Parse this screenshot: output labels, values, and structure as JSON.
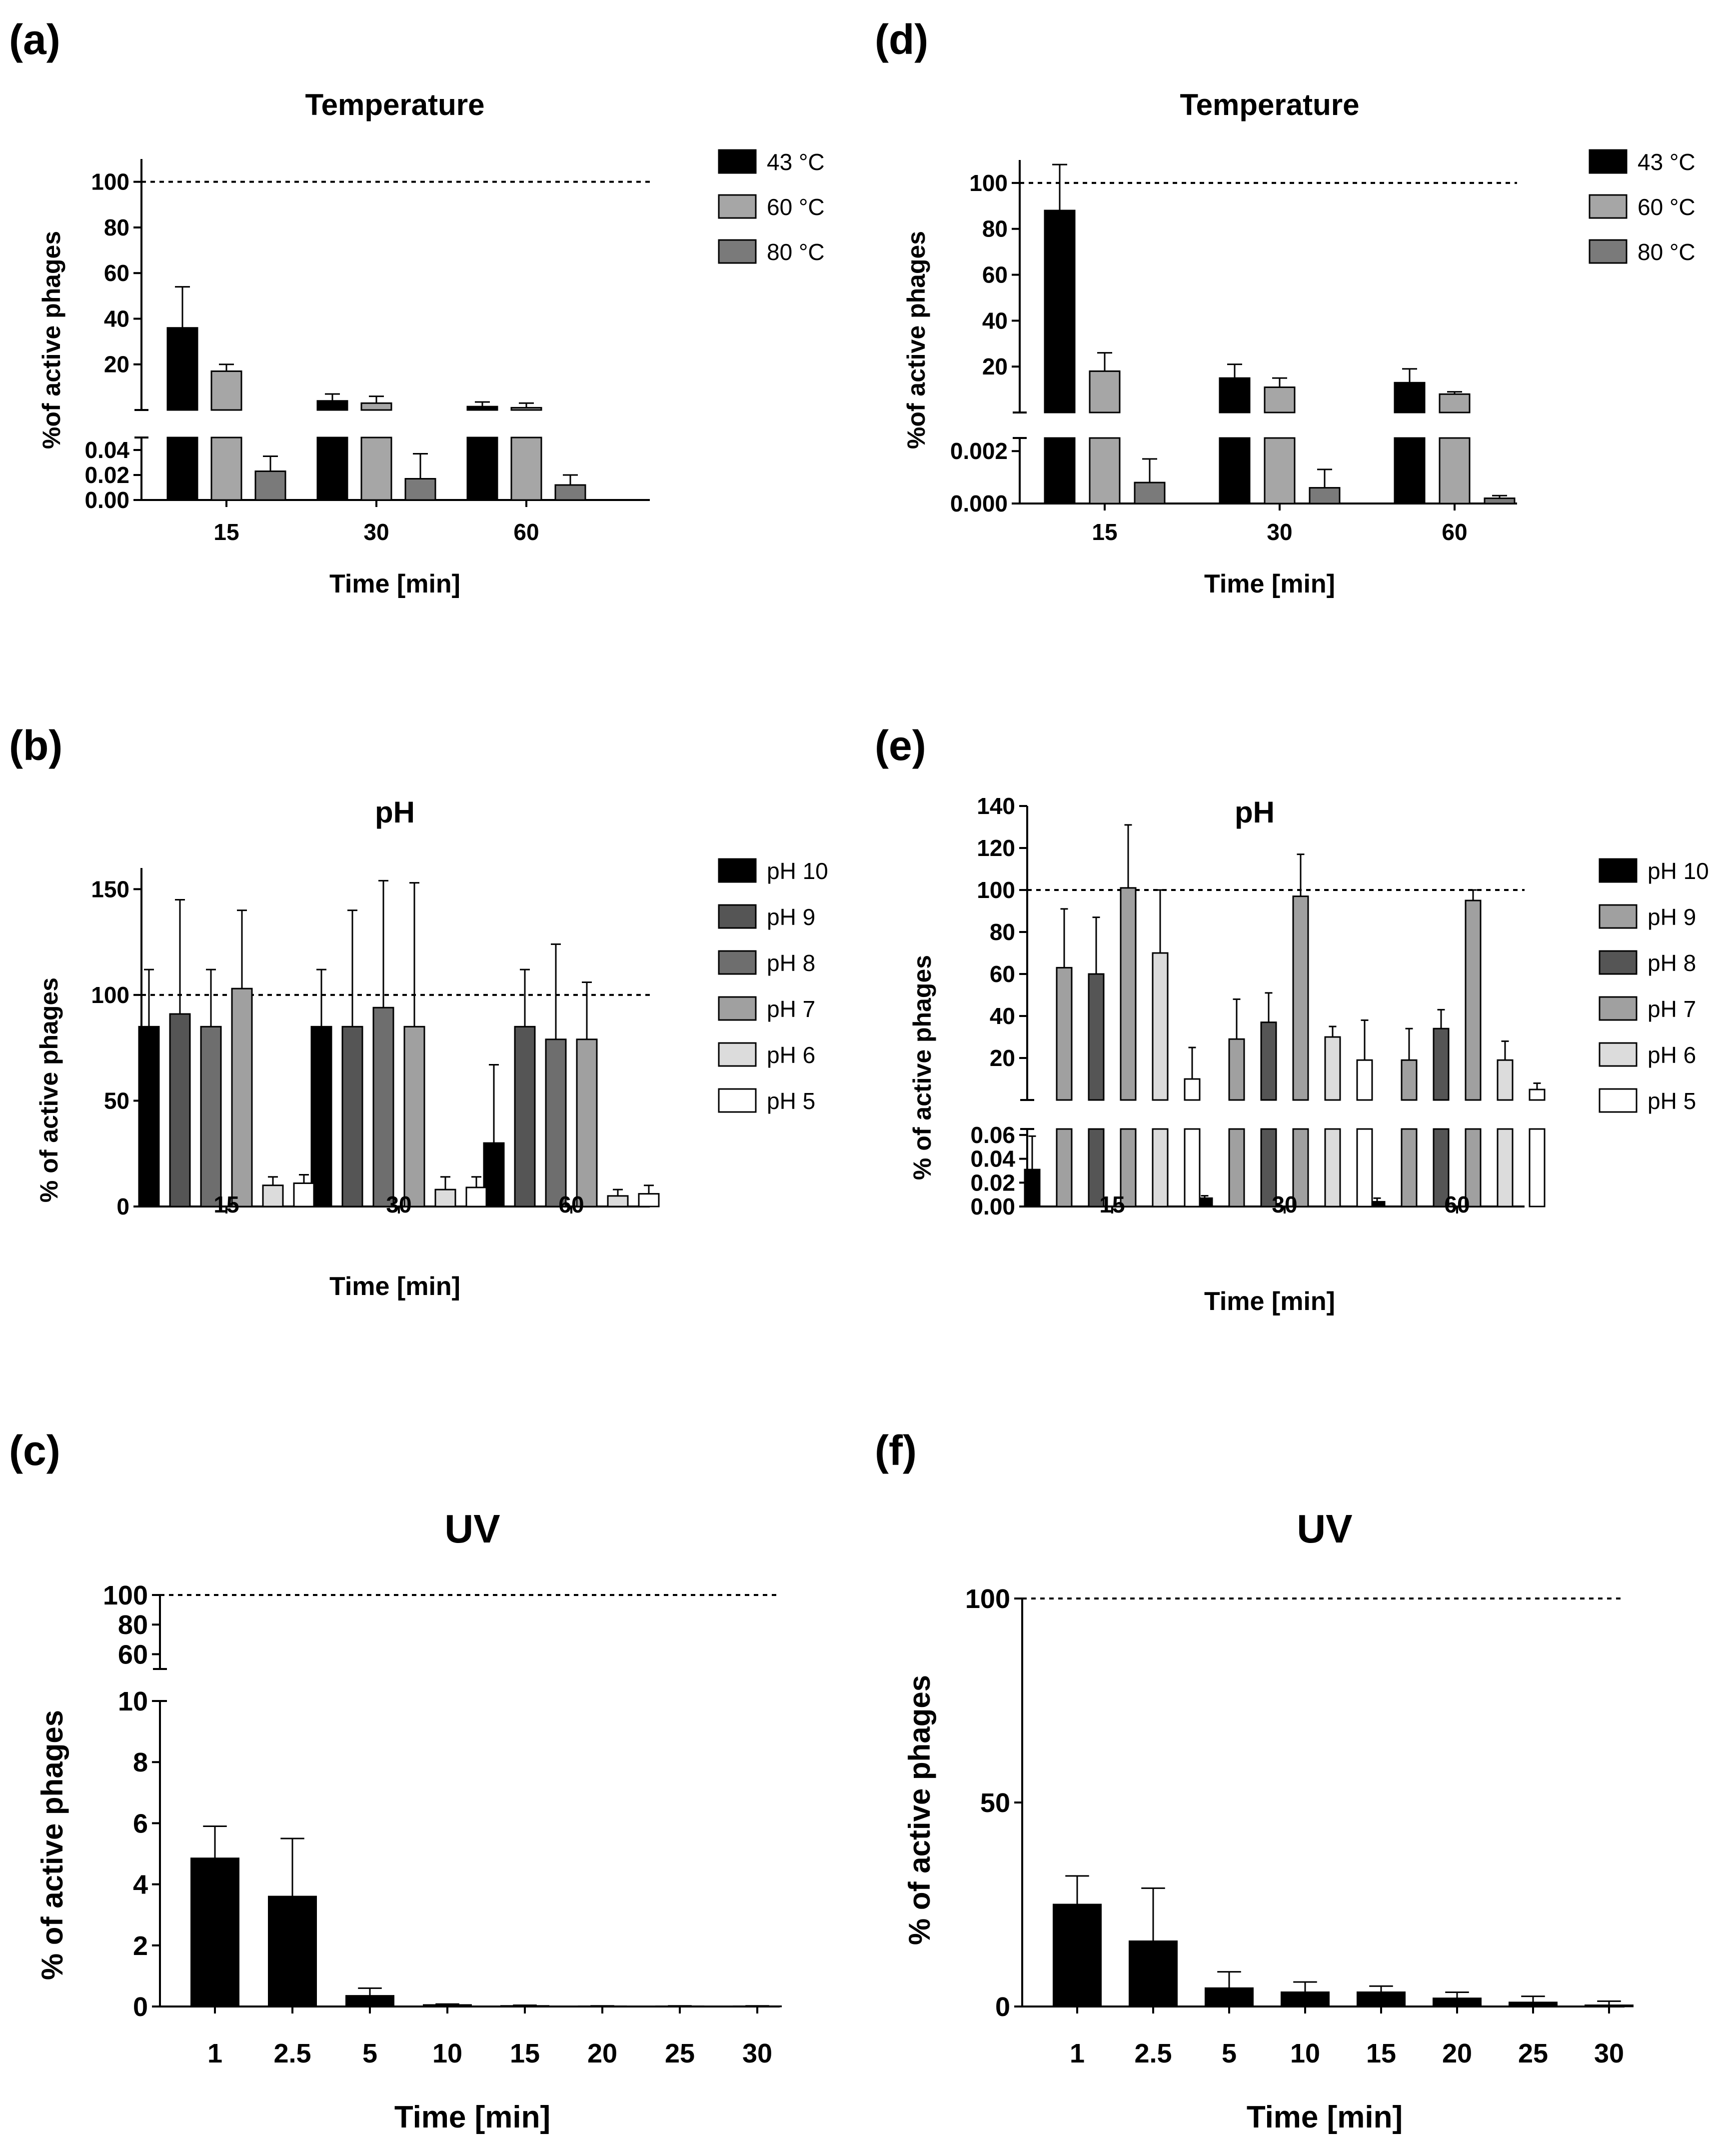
{
  "figure": {
    "panel_labels": [
      "(a)",
      "(b)",
      "(c)",
      "(d)",
      "(e)",
      "(f)"
    ]
  },
  "chart_data": [
    {
      "id": "a",
      "panel_label": "(a)",
      "type": "bar",
      "title": "Temperature",
      "xlabel": "Time [min]",
      "ylabel": "%of active phages",
      "categories": [
        "15",
        "30",
        "60"
      ],
      "reference_line": 100,
      "broken_axis": {
        "lower": {
          "range": [
            0,
            0.05
          ],
          "ticks": [
            0,
            0.02,
            0.04
          ],
          "tick_labels": [
            "0.00",
            "0.02",
            "0.04"
          ]
        },
        "upper": {
          "range": [
            0,
            110
          ],
          "ticks": [
            20,
            40,
            60,
            80,
            100
          ],
          "tick_labels": [
            "20",
            "40",
            "60",
            "80",
            "100"
          ]
        }
      },
      "series": [
        {
          "name": "43 °C",
          "color": "#000000",
          "values": [
            36,
            4,
            1.5
          ],
          "errors": [
            18,
            3,
            2
          ]
        },
        {
          "name": "60 °C",
          "color": "#a6a6a6",
          "values": [
            17,
            3,
            1
          ],
          "errors": [
            3,
            3,
            2
          ]
        },
        {
          "name": "80 °C",
          "color": "#7a7a7a",
          "values": [
            0.023,
            0.017,
            0.012
          ],
          "errors": [
            0.012,
            0.02,
            0.008
          ]
        }
      ]
    },
    {
      "id": "b",
      "panel_label": "(b)",
      "type": "bar",
      "title": "pH",
      "xlabel": "Time [min]",
      "ylabel": "% of active phages",
      "categories": [
        "15",
        "30",
        "60"
      ],
      "reference_line": 100,
      "ylim": [
        0,
        160
      ],
      "yticks": [
        0,
        50,
        100,
        150
      ],
      "series": [
        {
          "name": "pH 10",
          "color": "#000000",
          "values": [
            85,
            85,
            30
          ],
          "errors": [
            27,
            27,
            37
          ]
        },
        {
          "name": "pH 9",
          "color": "#555555",
          "values": [
            91,
            85,
            85
          ],
          "errors": [
            54,
            55,
            27
          ]
        },
        {
          "name": "pH 8",
          "color": "#6e6e6e",
          "values": [
            85,
            94,
            79
          ],
          "errors": [
            27,
            60,
            45
          ]
        },
        {
          "name": "pH 7",
          "color": "#a0a0a0",
          "values": [
            103,
            85,
            79
          ],
          "errors": [
            37,
            68,
            27
          ]
        },
        {
          "name": "pH 6",
          "color": "#dcdcdc",
          "values": [
            10,
            8,
            5
          ],
          "errors": [
            4,
            6,
            3
          ]
        },
        {
          "name": "pH 5",
          "color": "#ffffff",
          "values": [
            11,
            9,
            6
          ],
          "errors": [
            4,
            5,
            4
          ]
        }
      ]
    },
    {
      "id": "c",
      "panel_label": "(c)",
      "type": "bar",
      "title": "UV",
      "xlabel": "Time [min]",
      "ylabel": "% of active phages",
      "categories": [
        "1",
        "2.5",
        "5",
        "10",
        "15",
        "20",
        "25",
        "30"
      ],
      "reference_line": 100,
      "broken_axis": {
        "lower": {
          "range": [
            0,
            10
          ],
          "ticks": [
            0,
            2,
            4,
            6,
            8,
            10
          ],
          "tick_labels": [
            "0",
            "2",
            "4",
            "6",
            "8",
            "10"
          ]
        },
        "upper": {
          "range": [
            50,
            100
          ],
          "ticks": [
            60,
            80,
            100
          ],
          "tick_labels": [
            "60",
            "80",
            "100"
          ]
        }
      },
      "series": [
        {
          "name": "UV",
          "color": "#000000",
          "values": [
            4.85,
            3.6,
            0.35,
            0.05,
            0.02,
            0.01,
            0.01,
            0.01
          ],
          "errors": [
            1.05,
            1.9,
            0.25,
            0.03,
            0.02,
            0.01,
            0.01,
            0.01
          ]
        }
      ]
    },
    {
      "id": "d",
      "panel_label": "(d)",
      "type": "bar",
      "title": "Temperature",
      "xlabel": "Time [min]",
      "ylabel": "%of active phages",
      "categories": [
        "15",
        "30",
        "60"
      ],
      "reference_line": 100,
      "broken_axis": {
        "lower": {
          "range": [
            0,
            0.0025
          ],
          "ticks": [
            0,
            0.002
          ],
          "tick_labels": [
            "0.000",
            "0.002"
          ]
        },
        "upper": {
          "range": [
            0,
            110
          ],
          "ticks": [
            20,
            40,
            60,
            80,
            100
          ],
          "tick_labels": [
            "20",
            "40",
            "60",
            "80",
            "100"
          ]
        }
      },
      "series": [
        {
          "name": "43 °C",
          "color": "#000000",
          "values": [
            88,
            15,
            13
          ],
          "errors": [
            20,
            6,
            6
          ]
        },
        {
          "name": "60 °C",
          "color": "#a6a6a6",
          "values": [
            18,
            11,
            8
          ],
          "errors": [
            8,
            4,
            1
          ]
        },
        {
          "name": "80 °C",
          "color": "#7a7a7a",
          "values": [
            0.0008,
            0.0006,
            0.0002
          ],
          "errors": [
            0.0009,
            0.0007,
            0.0001
          ]
        }
      ]
    },
    {
      "id": "e",
      "panel_label": "(e)",
      "type": "bar",
      "title": "pH",
      "xlabel": "Time [min]",
      "ylabel": "% of active phages",
      "categories": [
        "15",
        "30",
        "60"
      ],
      "reference_line": 100,
      "broken_axis": {
        "lower": {
          "range": [
            0,
            0.065
          ],
          "ticks": [
            0,
            0.02,
            0.04,
            0.06
          ],
          "tick_labels": [
            "0.00",
            "0.02",
            "0.04",
            "0.06"
          ]
        },
        "upper": {
          "range": [
            0,
            140
          ],
          "ticks": [
            20,
            40,
            60,
            80,
            100,
            120,
            140
          ],
          "tick_labels": [
            "20",
            "40",
            "60",
            "80",
            "100",
            "120",
            "140"
          ]
        }
      },
      "series": [
        {
          "name": "pH 10",
          "color": "#000000",
          "values": [
            0.031,
            0.007,
            0.004
          ],
          "errors": [
            0.028,
            0.002,
            0.003
          ]
        },
        {
          "name": "pH 9",
          "color": "#a0a0a0",
          "values": [
            63,
            29,
            19
          ],
          "errors": [
            28,
            19,
            15
          ]
        },
        {
          "name": "pH 8",
          "color": "#555555",
          "values": [
            60,
            37,
            34
          ],
          "errors": [
            27,
            14,
            9
          ]
        },
        {
          "name": "pH 7",
          "color": "#a0a0a0",
          "values": [
            101,
            97,
            95
          ],
          "errors": [
            30,
            20,
            5
          ]
        },
        {
          "name": "pH 6",
          "color": "#dcdcdc",
          "values": [
            70,
            30,
            19
          ],
          "errors": [
            30,
            5,
            9
          ]
        },
        {
          "name": "pH 5",
          "color": "#ffffff",
          "values": [
            10,
            19,
            5
          ],
          "errors": [
            15,
            19,
            3
          ]
        }
      ]
    },
    {
      "id": "f",
      "panel_label": "(f)",
      "type": "bar",
      "title": "UV",
      "xlabel": "Time [min]",
      "ylabel": "% of active phages",
      "categories": [
        "1",
        "2.5",
        "5",
        "10",
        "15",
        "20",
        "25",
        "30"
      ],
      "reference_line": 100,
      "ylim": [
        0,
        100
      ],
      "yticks": [
        0,
        50,
        100
      ],
      "series": [
        {
          "name": "UV",
          "color": "#000000",
          "values": [
            25,
            16,
            4.5,
            3.5,
            3.5,
            2,
            1,
            0.3
          ],
          "errors": [
            7,
            13,
            4,
            2.5,
            1.5,
            1.5,
            1.5,
            1
          ]
        }
      ]
    }
  ]
}
